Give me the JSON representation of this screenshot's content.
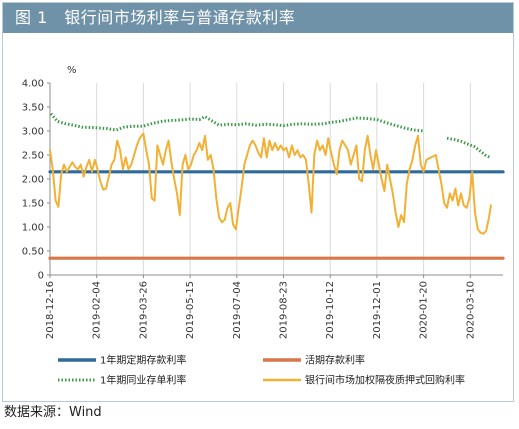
{
  "colors": {
    "title_bar": "#6f92a9",
    "fixed_deposit": "#2e6a9a",
    "demand_deposit": "#d9774a",
    "interbank_cd": "#3d9a49",
    "repo": "#f2b035",
    "grid": "#d9d9d9",
    "axis": "#8c8c8c"
  },
  "chart_data": {
    "type": "line",
    "title": "图 1　银行间市场利率与普通存款利率",
    "unit_label": "%",
    "ylim": [
      0,
      4.0
    ],
    "yticks": [
      "0",
      "0.50",
      "1.00",
      "1.50",
      "2.00",
      "2.50",
      "3.00",
      "3.50",
      "4.00"
    ],
    "ytick_values": [
      0,
      0.5,
      1.0,
      1.5,
      2.0,
      2.5,
      3.0,
      3.5,
      4.0
    ],
    "xlim": [
      "2018-12-16",
      "2020-04-14"
    ],
    "xticks": [
      "2018-12-16",
      "2019-02-04",
      "2019-03-26",
      "2019-05-15",
      "2019-07-04",
      "2019-08-23",
      "2019-10-12",
      "2019-12-01",
      "2020-01-20",
      "2020-03-10"
    ],
    "grid": "vertical",
    "legend_position": "bottom",
    "series": [
      {
        "name": "1年期定期存款利率",
        "style": "solid-thick",
        "points": [
          [
            "2018-12-16",
            2.15
          ],
          [
            "2020-04-14",
            2.15
          ]
        ]
      },
      {
        "name": "活期存款利率",
        "style": "solid-thick",
        "points": [
          [
            "2018-12-16",
            0.35
          ],
          [
            "2020-04-14",
            0.35
          ]
        ]
      },
      {
        "name": "1年期同业存单利率",
        "style": "dotted",
        "points": [
          [
            "2018-12-17",
            3.36
          ],
          [
            "2018-12-24",
            3.2
          ],
          [
            "2019-01-02",
            3.15
          ],
          [
            "2019-01-10",
            3.12
          ],
          [
            "2019-01-20",
            3.08
          ],
          [
            "2019-02-01",
            3.07
          ],
          [
            "2019-02-15",
            3.05
          ],
          [
            "2019-02-25",
            3.02
          ],
          [
            "2019-03-05",
            3.08
          ],
          [
            "2019-03-15",
            3.1
          ],
          [
            "2019-03-26",
            3.1
          ],
          [
            "2019-04-05",
            3.16
          ],
          [
            "2019-04-15",
            3.2
          ],
          [
            "2019-04-25",
            3.22
          ],
          [
            "2019-05-05",
            3.23
          ],
          [
            "2019-05-15",
            3.25
          ],
          [
            "2019-05-25",
            3.24
          ],
          [
            "2019-05-31",
            3.3
          ],
          [
            "2019-06-15",
            3.12
          ],
          [
            "2019-06-25",
            3.14
          ],
          [
            "2019-07-04",
            3.13
          ],
          [
            "2019-07-14",
            3.15
          ],
          [
            "2019-07-24",
            3.12
          ],
          [
            "2019-08-05",
            3.14
          ],
          [
            "2019-08-15",
            3.13
          ],
          [
            "2019-08-23",
            3.11
          ],
          [
            "2019-09-02",
            3.14
          ],
          [
            "2019-09-12",
            3.15
          ],
          [
            "2019-09-22",
            3.14
          ],
          [
            "2019-10-05",
            3.15
          ],
          [
            "2019-10-12",
            3.18
          ],
          [
            "2019-10-22",
            3.2
          ],
          [
            "2019-11-01",
            3.24
          ],
          [
            "2019-11-10",
            3.27
          ],
          [
            "2019-11-20",
            3.26
          ],
          [
            "2019-12-01",
            3.24
          ],
          [
            "2019-12-10",
            3.18
          ],
          [
            "2019-12-20",
            3.12
          ],
          [
            "2019-12-31",
            3.06
          ],
          [
            "2020-01-10",
            3.02
          ],
          [
            "2020-01-20",
            3.0
          ]
        ]
      },
      {
        "name": "1年期同业存单利率",
        "style": "dotted",
        "points": [
          [
            "2020-02-14",
            2.85
          ],
          [
            "2020-02-22",
            2.82
          ],
          [
            "2020-03-01",
            2.78
          ],
          [
            "2020-03-08",
            2.72
          ],
          [
            "2020-03-14",
            2.68
          ],
          [
            "2020-03-18",
            2.62
          ],
          [
            "2020-03-22",
            2.56
          ],
          [
            "2020-03-26",
            2.5
          ],
          [
            "2020-04-01",
            2.44
          ]
        ]
      },
      {
        "name": "银行间市场加权隔夜质押式回购利率",
        "style": "solid",
        "points": [
          [
            "2018-12-16",
            2.6
          ],
          [
            "2018-12-19",
            2.2
          ],
          [
            "2018-12-22",
            1.55
          ],
          [
            "2018-12-25",
            1.42
          ],
          [
            "2018-12-28",
            2.1
          ],
          [
            "2018-12-31",
            2.3
          ],
          [
            "2019-01-03",
            2.15
          ],
          [
            "2019-01-06",
            2.25
          ],
          [
            "2019-01-09",
            2.35
          ],
          [
            "2019-01-12",
            2.25
          ],
          [
            "2019-01-15",
            2.2
          ],
          [
            "2019-01-18",
            2.3
          ],
          [
            "2019-01-21",
            2.05
          ],
          [
            "2019-01-24",
            2.25
          ],
          [
            "2019-01-27",
            2.4
          ],
          [
            "2019-01-30",
            2.15
          ],
          [
            "2019-02-02",
            2.4
          ],
          [
            "2019-02-05",
            2.2
          ],
          [
            "2019-02-08",
            1.95
          ],
          [
            "2019-02-11",
            1.78
          ],
          [
            "2019-02-14",
            1.8
          ],
          [
            "2019-02-17",
            2.05
          ],
          [
            "2019-02-20",
            2.3
          ],
          [
            "2019-02-23",
            2.4
          ],
          [
            "2019-02-26",
            2.8
          ],
          [
            "2019-03-01",
            2.6
          ],
          [
            "2019-03-04",
            2.2
          ],
          [
            "2019-03-07",
            2.45
          ],
          [
            "2019-03-10",
            2.2
          ],
          [
            "2019-03-13",
            2.3
          ],
          [
            "2019-03-16",
            2.5
          ],
          [
            "2019-03-19",
            2.7
          ],
          [
            "2019-03-22",
            2.85
          ],
          [
            "2019-03-26",
            2.95
          ],
          [
            "2019-03-29",
            2.6
          ],
          [
            "2019-04-01",
            2.3
          ],
          [
            "2019-04-04",
            1.6
          ],
          [
            "2019-04-07",
            1.55
          ],
          [
            "2019-04-10",
            2.7
          ],
          [
            "2019-04-13",
            2.5
          ],
          [
            "2019-04-16",
            2.3
          ],
          [
            "2019-04-19",
            2.6
          ],
          [
            "2019-04-22",
            2.8
          ],
          [
            "2019-04-25",
            2.35
          ],
          [
            "2019-04-28",
            2.0
          ],
          [
            "2019-05-01",
            1.7
          ],
          [
            "2019-05-04",
            1.25
          ],
          [
            "2019-05-07",
            2.3
          ],
          [
            "2019-05-10",
            2.5
          ],
          [
            "2019-05-13",
            2.2
          ],
          [
            "2019-05-16",
            2.3
          ],
          [
            "2019-05-19",
            2.5
          ],
          [
            "2019-05-22",
            2.6
          ],
          [
            "2019-05-25",
            2.75
          ],
          [
            "2019-05-28",
            2.6
          ],
          [
            "2019-05-31",
            2.9
          ],
          [
            "2019-06-03",
            2.4
          ],
          [
            "2019-06-06",
            2.5
          ],
          [
            "2019-06-09",
            2.2
          ],
          [
            "2019-06-12",
            1.6
          ],
          [
            "2019-06-15",
            1.2
          ],
          [
            "2019-06-18",
            1.1
          ],
          [
            "2019-06-21",
            1.15
          ],
          [
            "2019-06-24",
            1.4
          ],
          [
            "2019-06-27",
            1.5
          ],
          [
            "2019-06-30",
            1.05
          ],
          [
            "2019-07-03",
            0.95
          ],
          [
            "2019-07-06",
            1.4
          ],
          [
            "2019-07-09",
            1.8
          ],
          [
            "2019-07-12",
            2.3
          ],
          [
            "2019-07-15",
            2.5
          ],
          [
            "2019-07-18",
            2.7
          ],
          [
            "2019-07-21",
            2.8
          ],
          [
            "2019-07-24",
            2.7
          ],
          [
            "2019-07-27",
            2.55
          ],
          [
            "2019-07-30",
            2.45
          ],
          [
            "2019-08-02",
            2.85
          ],
          [
            "2019-08-05",
            2.45
          ],
          [
            "2019-08-08",
            2.8
          ],
          [
            "2019-08-11",
            2.6
          ],
          [
            "2019-08-14",
            2.75
          ],
          [
            "2019-08-17",
            2.6
          ],
          [
            "2019-08-20",
            2.7
          ],
          [
            "2019-08-23",
            2.6
          ],
          [
            "2019-08-26",
            2.65
          ],
          [
            "2019-08-29",
            2.45
          ],
          [
            "2019-09-01",
            2.7
          ],
          [
            "2019-09-04",
            2.5
          ],
          [
            "2019-09-07",
            2.6
          ],
          [
            "2019-09-10",
            2.45
          ],
          [
            "2019-09-13",
            2.5
          ],
          [
            "2019-09-16",
            2.4
          ],
          [
            "2019-09-19",
            1.9
          ],
          [
            "2019-09-22",
            1.3
          ],
          [
            "2019-09-25",
            2.5
          ],
          [
            "2019-09-28",
            2.8
          ],
          [
            "2019-10-01",
            2.6
          ],
          [
            "2019-10-04",
            2.7
          ],
          [
            "2019-10-07",
            2.5
          ],
          [
            "2019-10-10",
            2.85
          ],
          [
            "2019-10-13",
            2.55
          ],
          [
            "2019-10-16",
            2.3
          ],
          [
            "2019-10-19",
            2.1
          ],
          [
            "2019-10-22",
            2.6
          ],
          [
            "2019-10-25",
            2.8
          ],
          [
            "2019-10-28",
            2.7
          ],
          [
            "2019-10-31",
            2.6
          ],
          [
            "2019-11-03",
            2.3
          ],
          [
            "2019-11-06",
            2.5
          ],
          [
            "2019-11-09",
            2.7
          ],
          [
            "2019-11-12",
            2.0
          ],
          [
            "2019-11-15",
            1.95
          ],
          [
            "2019-11-18",
            2.6
          ],
          [
            "2019-11-21",
            2.9
          ],
          [
            "2019-11-24",
            2.5
          ],
          [
            "2019-11-27",
            2.2
          ],
          [
            "2019-11-30",
            2.6
          ],
          [
            "2019-12-03",
            2.3
          ],
          [
            "2019-12-06",
            2.0
          ],
          [
            "2019-12-09",
            1.75
          ],
          [
            "2019-12-12",
            2.3
          ],
          [
            "2019-12-15",
            2.0
          ],
          [
            "2019-12-18",
            1.7
          ],
          [
            "2019-12-21",
            1.3
          ],
          [
            "2019-12-24",
            1.0
          ],
          [
            "2019-12-27",
            1.25
          ],
          [
            "2019-12-30",
            1.1
          ],
          [
            "2020-01-02",
            1.9
          ],
          [
            "2020-01-05",
            2.2
          ],
          [
            "2020-01-08",
            2.4
          ],
          [
            "2020-01-11",
            2.7
          ],
          [
            "2020-01-14",
            2.9
          ],
          [
            "2020-01-17",
            2.3
          ],
          [
            "2020-01-20",
            2.15
          ],
          [
            "2020-01-23",
            2.4
          ],
          [
            "2020-02-02",
            2.5
          ],
          [
            "2020-02-05",
            2.2
          ],
          [
            "2020-02-08",
            1.9
          ],
          [
            "2020-02-11",
            1.5
          ],
          [
            "2020-02-14",
            1.4
          ],
          [
            "2020-02-17",
            1.7
          ],
          [
            "2020-02-20",
            1.55
          ],
          [
            "2020-02-23",
            1.8
          ],
          [
            "2020-02-26",
            1.45
          ],
          [
            "2020-02-29",
            1.7
          ],
          [
            "2020-03-03",
            1.45
          ],
          [
            "2020-03-06",
            1.4
          ],
          [
            "2020-03-09",
            1.6
          ],
          [
            "2020-03-12",
            2.15
          ],
          [
            "2020-03-15",
            1.3
          ],
          [
            "2020-03-18",
            0.95
          ],
          [
            "2020-03-21",
            0.88
          ],
          [
            "2020-03-24",
            0.86
          ],
          [
            "2020-03-27",
            0.92
          ],
          [
            "2020-03-30",
            1.2
          ],
          [
            "2020-04-01",
            1.45
          ]
        ]
      }
    ],
    "legend": [
      {
        "label": "1年期定期存款利率",
        "color": "#2e6a9a",
        "style": "solid-thick"
      },
      {
        "label": "活期存款利率",
        "color": "#d9774a",
        "style": "solid-thick"
      },
      {
        "label": "1年期同业存单利率",
        "color": "#3d9a49",
        "style": "dotted"
      },
      {
        "label": "银行间市场加权隔夜质押式回购利率",
        "color": "#f2b035",
        "style": "solid"
      }
    ]
  },
  "source_note": "数据来源：Wind"
}
